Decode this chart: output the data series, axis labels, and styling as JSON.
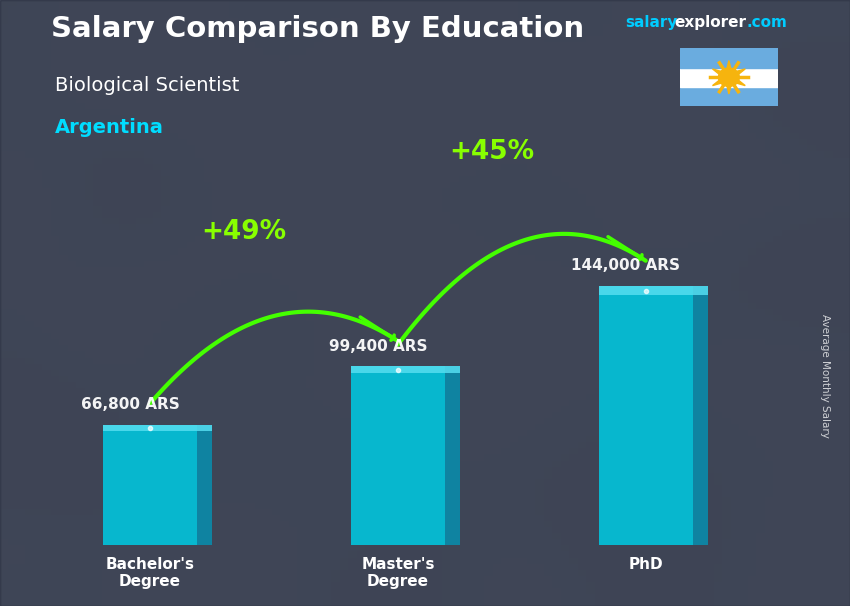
{
  "title": "Salary Comparison By Education",
  "subtitle": "Biological Scientist",
  "country": "Argentina",
  "ylabel": "Average Monthly Salary",
  "website_salary": "salary",
  "website_explorer": "explorer",
  "website_com": ".com",
  "categories": [
    "Bachelor's\nDegree",
    "Master's\nDegree",
    "PhD"
  ],
  "values": [
    66800,
    99400,
    144000
  ],
  "value_labels": [
    "66,800 ARS",
    "99,400 ARS",
    "144,000 ARS"
  ],
  "bar_color_main": "#00c8e0",
  "bar_color_side": "#0099bb",
  "bar_color_top": "#55ddf0",
  "pct_labels": [
    "+49%",
    "+45%"
  ],
  "bg_dark": "#3a3a4a",
  "title_color": "#ffffff",
  "subtitle_color": "#ffffff",
  "country_color": "#00ddff",
  "value_label_color": "#ffffff",
  "pct_color": "#88ff00",
  "arrow_color": "#44ff00",
  "website_salary_color": "#00ccff",
  "website_other_color": "#ffffff",
  "bar_width": 0.38,
  "ylim_max": 185000,
  "x_positions": [
    0.5,
    1.5,
    2.5
  ],
  "flag_stripes": [
    "#6aacdf",
    "#ffffff",
    "#6aacdf"
  ],
  "flag_sun_color": "#F6B40E",
  "flag_sun_face_color": "#843511"
}
